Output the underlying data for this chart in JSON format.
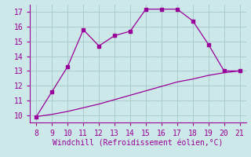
{
  "x_upper": [
    8,
    9,
    10,
    11,
    12,
    13,
    14,
    15,
    16,
    17,
    18,
    19,
    20,
    21
  ],
  "y_upper": [
    9.9,
    11.6,
    13.3,
    15.8,
    14.7,
    15.4,
    15.7,
    17.2,
    17.2,
    17.2,
    16.4,
    14.8,
    13.0,
    13.0
  ],
  "x_lower": [
    8,
    9,
    10,
    11,
    12,
    13,
    14,
    15,
    16,
    17,
    18,
    19,
    20,
    21
  ],
  "y_lower": [
    9.9,
    10.05,
    10.25,
    10.5,
    10.75,
    11.05,
    11.35,
    11.65,
    11.95,
    12.25,
    12.45,
    12.7,
    12.88,
    13.0
  ],
  "line_color": "#990099",
  "bg_color": "#cce8e8",
  "grid_color": "#aacccc",
  "xlabel": "Windchill (Refroidissement éolien,°C)",
  "ylim": [
    9.5,
    17.5
  ],
  "xlim": [
    7.6,
    21.4
  ],
  "yticks": [
    10,
    11,
    12,
    13,
    14,
    15,
    16,
    17
  ],
  "xticks": [
    8,
    9,
    10,
    11,
    12,
    13,
    14,
    15,
    16,
    17,
    18,
    19,
    20,
    21
  ],
  "tick_fontsize": 7,
  "xlabel_fontsize": 7
}
